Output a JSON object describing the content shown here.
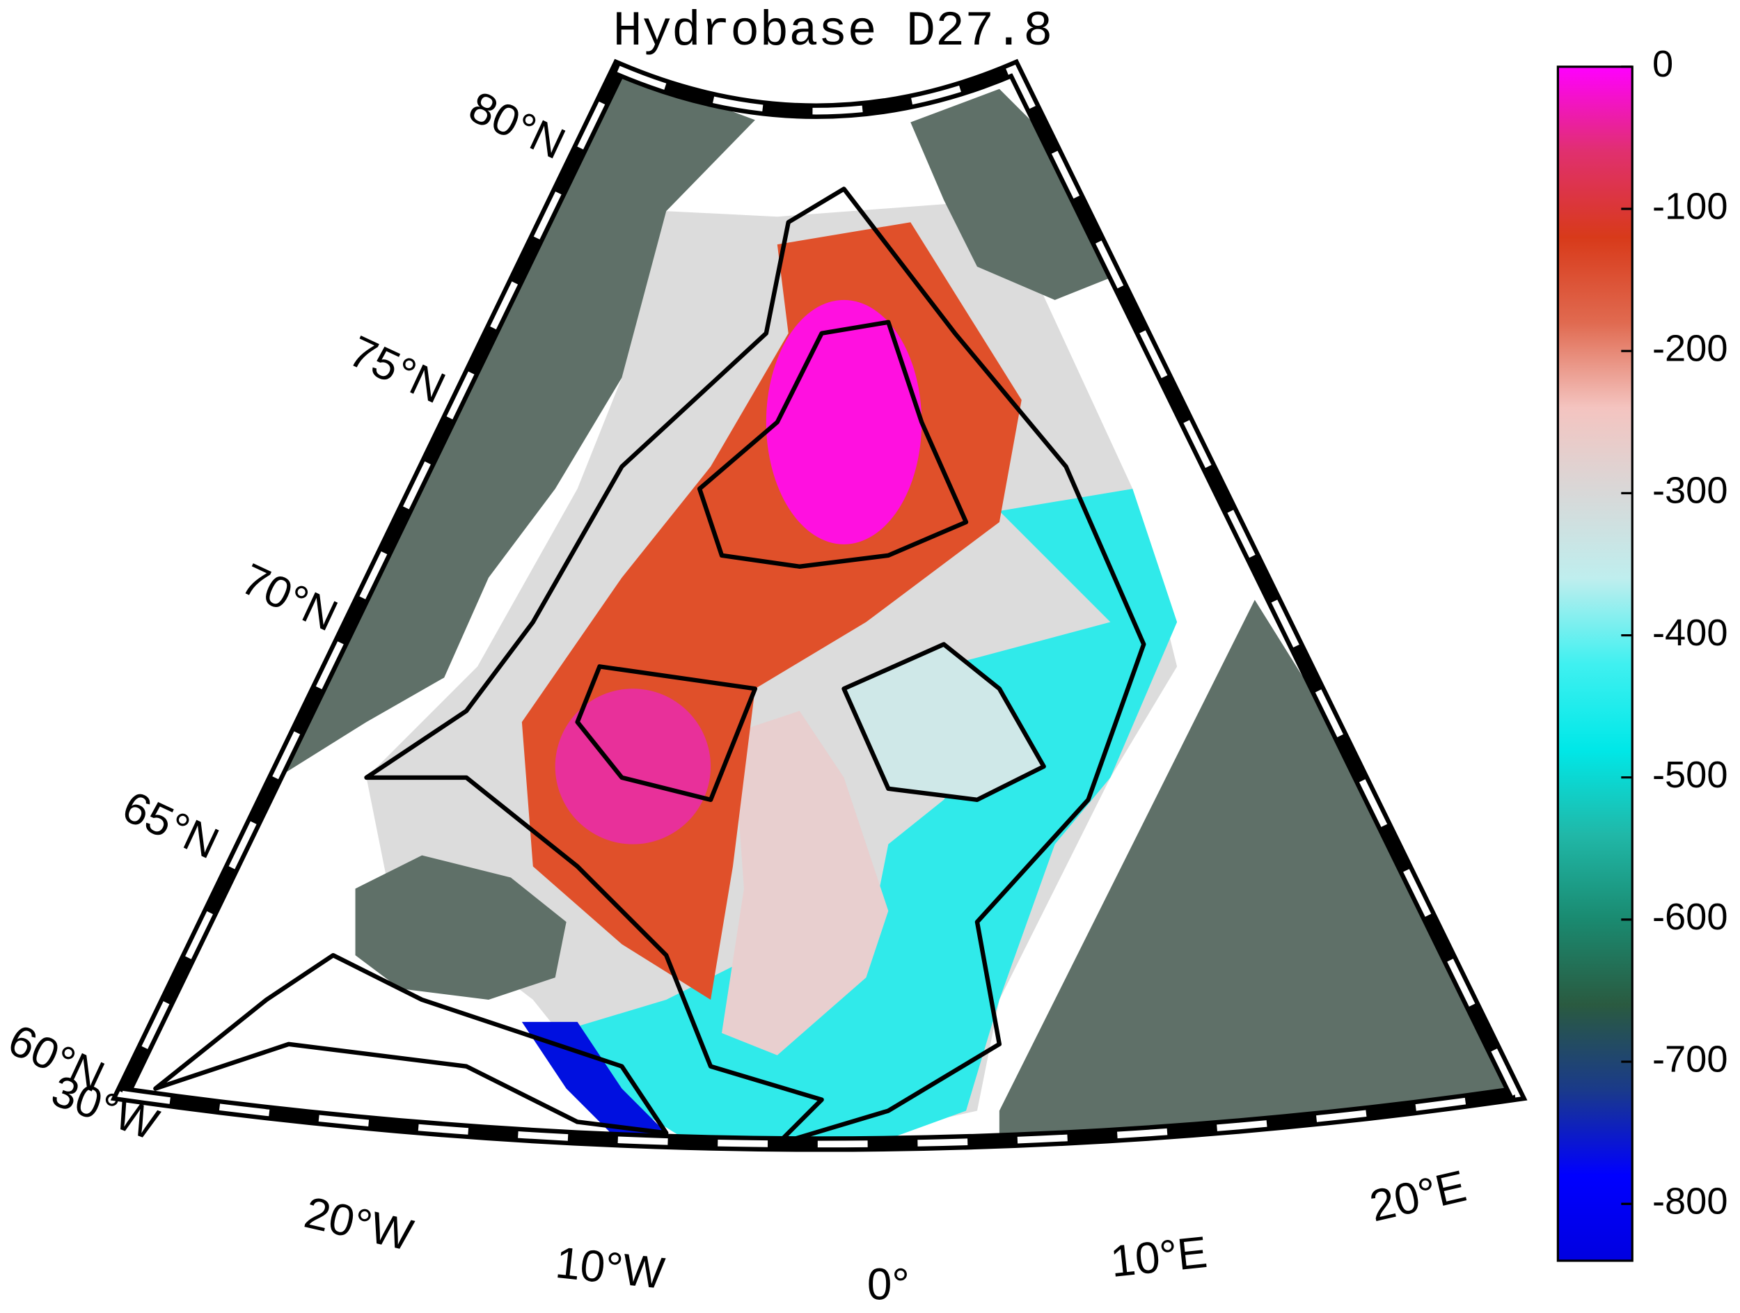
{
  "title": "Hydrobase D27.8",
  "latitude_labels": [
    "80°N",
    "75°N",
    "70°N",
    "65°N",
    "60°N"
  ],
  "longitude_labels": [
    "30°W",
    "20°W",
    "10°W",
    "0°",
    "10°E",
    "20°E"
  ],
  "colorbar": {
    "clim": [
      -840,
      0
    ],
    "ticks": [
      0,
      -100,
      -200,
      -300,
      -400,
      -500,
      -600,
      -700,
      -800
    ],
    "colormap": [
      "#ff00ff",
      "#e0306e",
      "#d83a1a",
      "#e06a50",
      "#f4c4c0",
      "#d8d8d8",
      "#bfeeee",
      "#40f0f0",
      "#00e8e8",
      "#20b8a8",
      "#1a8a70",
      "#2a5a40",
      "#1a3a8a",
      "#0000ff",
      "#0000e0"
    ]
  }
}
